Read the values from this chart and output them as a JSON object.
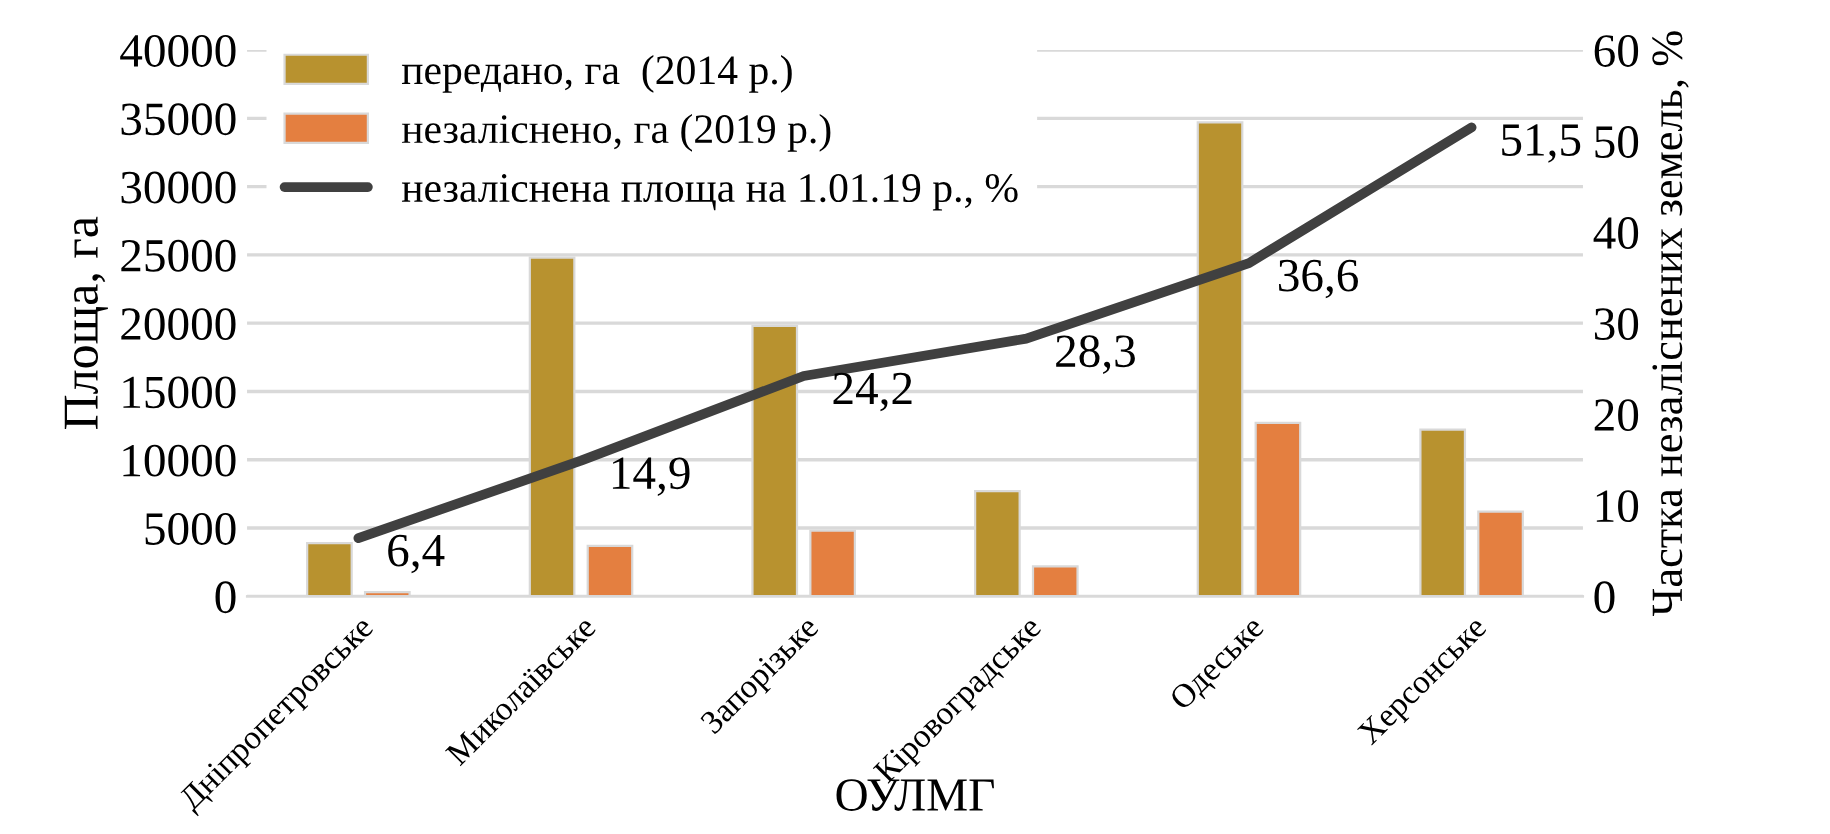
{
  "chart_data": {
    "type": "bar",
    "xlabel": "ОУЛМГ",
    "ylabel": "Площа, га",
    "y2label": "Частка незаліснених земель, %",
    "categories": [
      "Дніпропетровське",
      "Миколаївське",
      "Запорізьке",
      "Кіровоградське",
      "Одеське",
      "Херсонське"
    ],
    "series": [
      {
        "name": "передано, га  (2014 р.)",
        "color": "#b8922f",
        "values": [
          3900,
          24800,
          19800,
          7700,
          34700,
          12200
        ]
      },
      {
        "name": "незаліснено, га (2019 р.)",
        "color": "#e47f40",
        "values": [
          300,
          3700,
          4800,
          2200,
          12700,
          6200
        ]
      },
      {
        "name": "незаліснена площа на 1.01.19 р., %",
        "type": "line",
        "axis": "y2",
        "color": "#404040",
        "values": [
          6.4,
          14.9,
          24.2,
          28.3,
          36.6,
          51.5
        ],
        "value_labels": [
          "6,4",
          "14,9",
          "24,2",
          "28,3",
          "36,6",
          "51,5"
        ]
      }
    ],
    "ylim": [
      0,
      40000
    ],
    "yticks": [
      0,
      5000,
      10000,
      15000,
      20000,
      25000,
      30000,
      35000,
      40000
    ],
    "y2lim": [
      0,
      60
    ],
    "y2ticks": [
      0,
      10,
      20,
      30,
      40,
      50,
      60
    ],
    "grid": "y",
    "legend": "top left",
    "marker": "none",
    "line_style": "solid"
  }
}
